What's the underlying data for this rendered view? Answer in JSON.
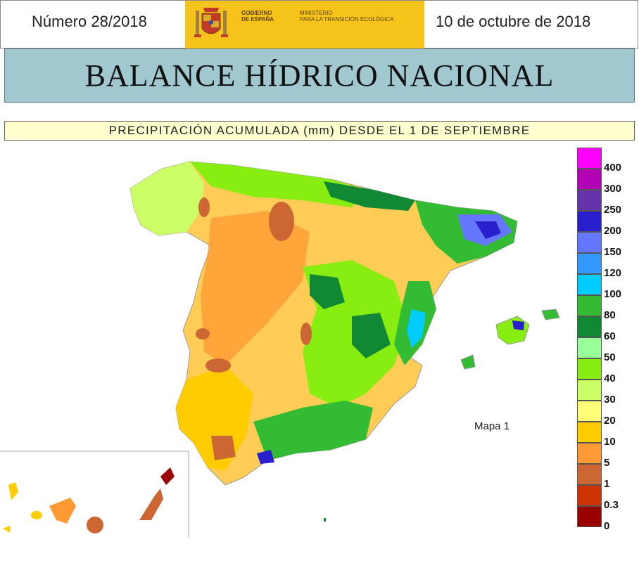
{
  "header": {
    "issue": "Número 28/2018",
    "date": "10 de octubre de 2018",
    "gov_line1": "GOBIERNO",
    "gov_line2": "DE ESPAÑA",
    "ministry_line1": "MINISTERIO",
    "ministry_line2": "PARA LA TRANSICIÓN ECOLÓGICA"
  },
  "title": "BALANCE HÍDRICO NACIONAL",
  "subtitle": "PRECIPITACIÓN ACUMULADA (mm) DESDE EL 1 DE SEPTIEMBRE",
  "map_label": "Mapa 1",
  "legend": [
    {
      "label": "400",
      "color": "#ff00ff"
    },
    {
      "label": "300",
      "color": "#b400b4"
    },
    {
      "label": "250",
      "color": "#6633aa"
    },
    {
      "label": "200",
      "color": "#2a1fcc"
    },
    {
      "label": "150",
      "color": "#6677ff"
    },
    {
      "label": "120",
      "color": "#3399ff"
    },
    {
      "label": "100",
      "color": "#00ccff"
    },
    {
      "label": "80",
      "color": "#33bb33"
    },
    {
      "label": "60",
      "color": "#118833"
    },
    {
      "label": "50",
      "color": "#99ff99"
    },
    {
      "label": "40",
      "color": "#88ee11"
    },
    {
      "label": "30",
      "color": "#ccff66"
    },
    {
      "label": "20",
      "color": "#ffff77"
    },
    {
      "label": "10",
      "color": "#ffcc00"
    },
    {
      "label": "5",
      "color": "#ff9933"
    },
    {
      "label": "1",
      "color": "#cc6633"
    },
    {
      "label": "0.3",
      "color": "#cc3300"
    },
    {
      "label": "0",
      "color": "#990000"
    }
  ],
  "colors": {
    "title_band": "#a2c8cf",
    "subtitle_band": "#ffffd0",
    "logo_yellow": "#f6c31a"
  }
}
